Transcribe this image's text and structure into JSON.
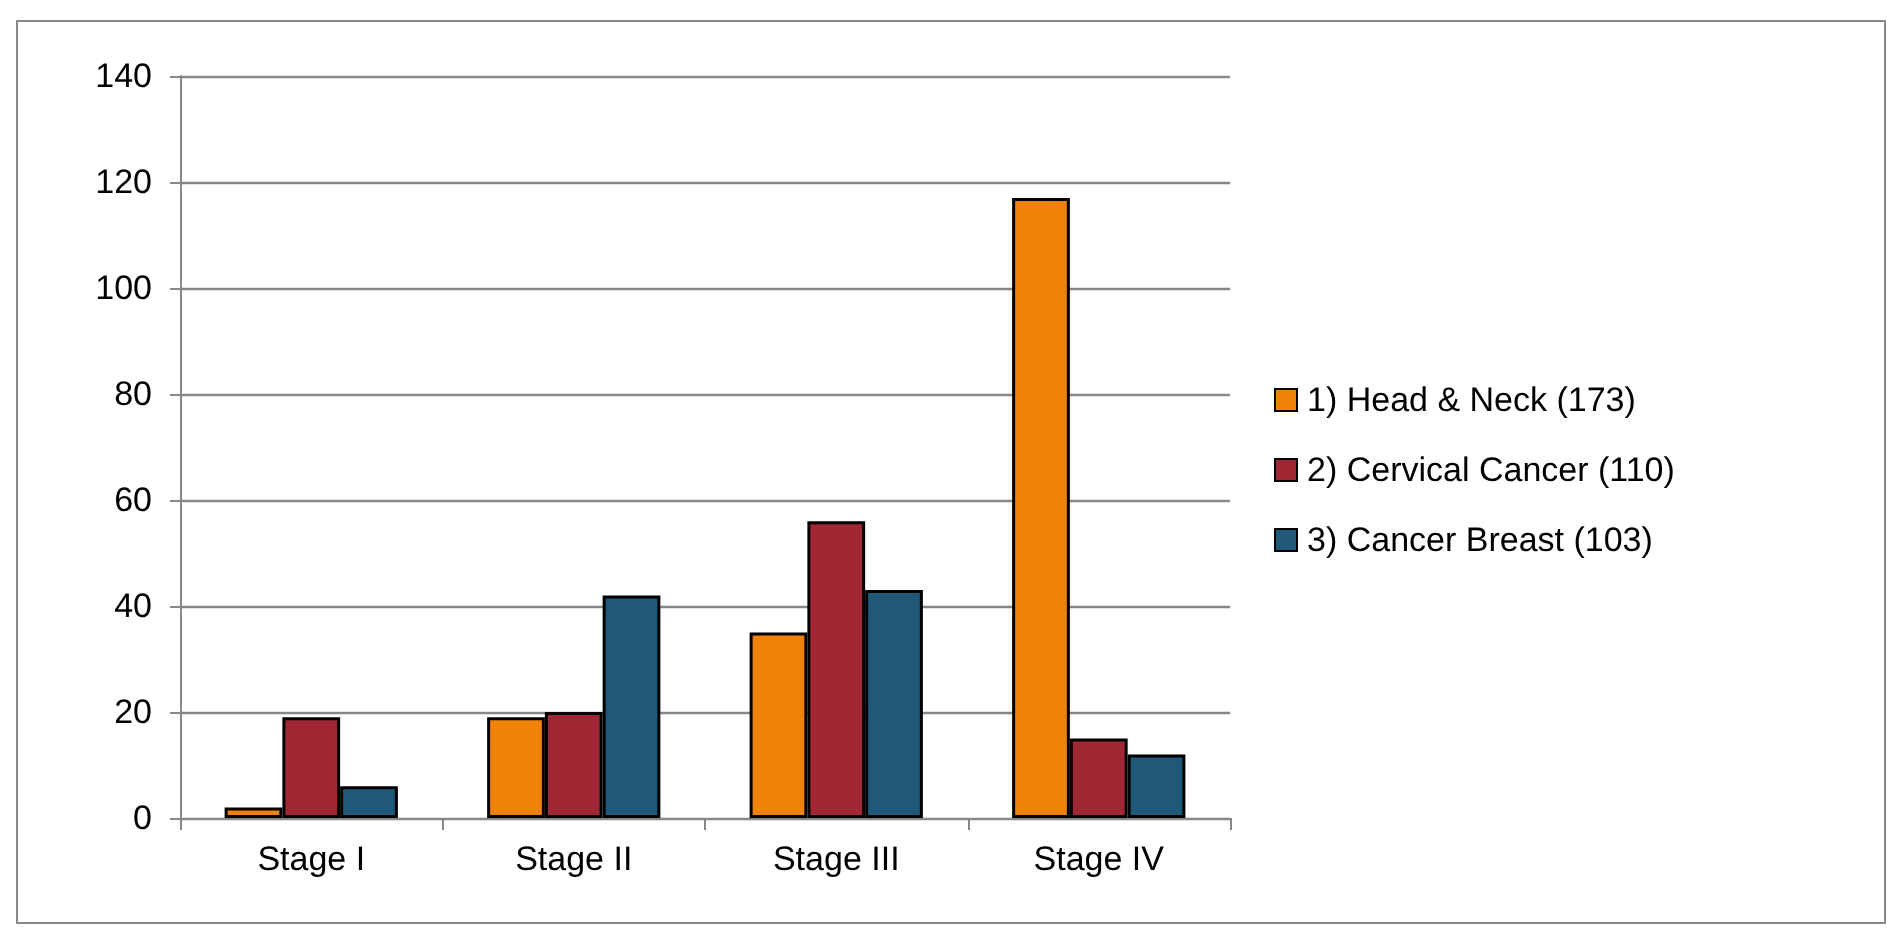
{
  "chart_data": {
    "type": "bar",
    "categories": [
      "Stage I",
      "Stage II",
      "Stage III",
      "Stage IV"
    ],
    "series": [
      {
        "name": "1) Head & Neck (173)",
        "color": "#f0820a",
        "values": [
          2,
          19,
          35,
          117
        ]
      },
      {
        "name": "2) Cervical Cancer (110)",
        "color": "#a12735",
        "values": [
          19,
          20,
          56,
          15
        ]
      },
      {
        "name": "3) Cancer Breast (103)",
        "color": "#1f5878",
        "values": [
          6,
          42,
          43,
          12
        ]
      }
    ],
    "ylim": [
      0,
      140
    ],
    "yticks": [
      0,
      20,
      40,
      60,
      80,
      100,
      120,
      140
    ],
    "grid": "y",
    "legend": "right"
  }
}
